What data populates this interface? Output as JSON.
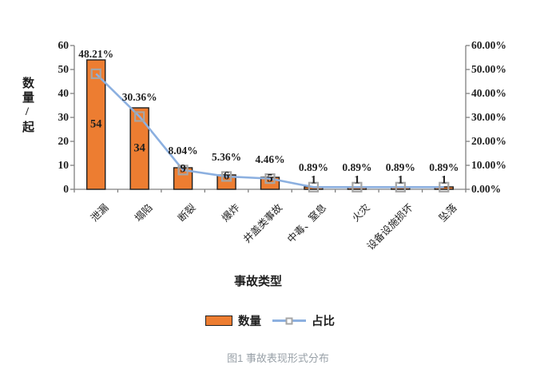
{
  "chart_data": {
    "type": "bar",
    "combo": "bar+line-dual-axis",
    "categories": [
      "泄漏",
      "塌陷",
      "断裂",
      "爆炸",
      "井盖类事故",
      "中毒、窒息",
      "火灾",
      "设备设施损坏",
      "坠落"
    ],
    "series": [
      {
        "name": "数量",
        "type": "bar",
        "axis": "left",
        "values": [
          54,
          34,
          9,
          6,
          5,
          1,
          1,
          1,
          1
        ],
        "labels": [
          "54",
          "34",
          "9",
          "6",
          "5",
          "1",
          "1",
          "1",
          "1"
        ]
      },
      {
        "name": "占比",
        "type": "line",
        "axis": "right",
        "values": [
          48.21,
          30.36,
          8.04,
          5.36,
          4.46,
          0.89,
          0.89,
          0.89,
          0.89
        ],
        "labels": [
          "48.21%",
          "30.36%",
          "8.04%",
          "5.36%",
          "4.46%",
          "0.89%",
          "0.89%",
          "0.89%",
          "0.89%"
        ]
      }
    ],
    "left_axis": {
      "min": 0,
      "max": 60,
      "tick_labels": [
        "60",
        "50",
        "40",
        "30",
        "20",
        "10",
        "0"
      ]
    },
    "right_axis": {
      "min": 0,
      "max": 60,
      "tick_labels": [
        "60.00%",
        "50.00%",
        "40.00%",
        "30.00%",
        "20.00%",
        "10.00%",
        "0.00%"
      ]
    },
    "ylabel_left": "数量/起",
    "xlabel": "事故类型",
    "legend": [
      "数量",
      "占比"
    ],
    "legend_position": "bottom",
    "grid": false,
    "caption": "图1 事故表现形式分布"
  },
  "colors": {
    "bar_fill": "#ED7D31",
    "bar_border": "#1f1f1f",
    "line": "#8CB0E0",
    "marker_border": "#A6A6A6",
    "axis": "#808080",
    "text": "#1f1f1f",
    "caption": "#99a1a8"
  }
}
